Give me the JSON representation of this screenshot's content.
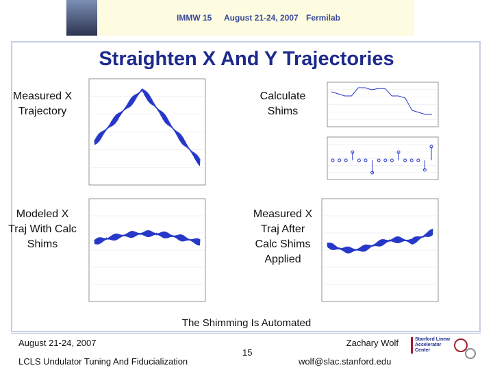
{
  "header": {
    "event": "IMMW 15",
    "dates": "August 21-24, 2007",
    "place": "Fermilab"
  },
  "slide": {
    "title": "Straighten X And Y Trajectories",
    "labels": [
      "Measured X Trajectory",
      "Calculate Shims",
      "Modeled X Traj With Calc Shims",
      "Measured X Traj After Calc Shims Applied"
    ],
    "caption": "The Shimming Is Automated"
  },
  "footer": {
    "date": "August 21-24, 2007",
    "project": "LCLS Undulator Tuning And Fiducialization",
    "page": "15",
    "author": "Zachary Wolf",
    "email": "wolf@slac.stanford.edu",
    "logo": "Stanford Linear Accelerator Center"
  }
}
